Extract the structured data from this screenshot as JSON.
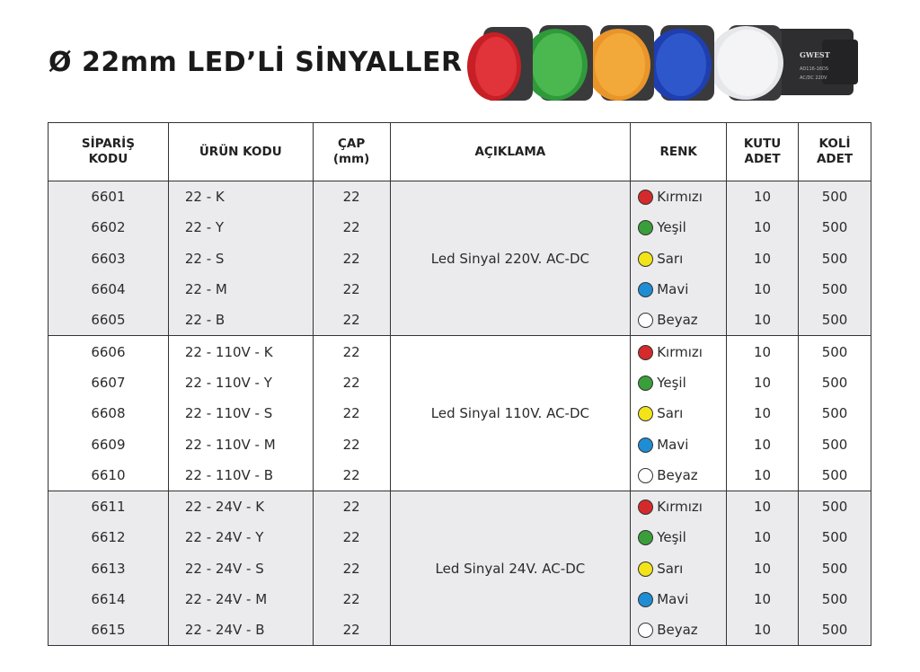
{
  "title": "Ø 22mm LED’Lİ SİNYALLER",
  "product_image": {
    "brand": "GWEST",
    "model": "AD116-16DS",
    "rating": "AC/DC 220V"
  },
  "colors": {
    "Kırmızı": "#d42a2c",
    "Yeşil": "#3a9e3a",
    "Sarı": "#f3e41a",
    "Mavi": "#1f8dd4",
    "Beyaz": "#ffffff"
  },
  "headers": {
    "siparis": "SİPARİŞ\nKODU",
    "urun": "ÜRÜN KODU",
    "cap": "ÇAP\n(mm)",
    "aciklama": "AÇIKLAMA",
    "renk": "RENK",
    "kutu": "KUTU\nADET",
    "koli": "KOLİ\nADET"
  },
  "groups": [
    {
      "description": "Led Sinyal 220V. AC-DC",
      "rows": [
        {
          "siparis": "6601",
          "urun": "22 - K",
          "cap": "22",
          "renk": "Kırmızı",
          "kutu": "10",
          "koli": "500"
        },
        {
          "siparis": "6602",
          "urun": "22 - Y",
          "cap": "22",
          "renk": "Yeşil",
          "kutu": "10",
          "koli": "500"
        },
        {
          "siparis": "6603",
          "urun": "22 - S",
          "cap": "22",
          "renk": "Sarı",
          "kutu": "10",
          "koli": "500"
        },
        {
          "siparis": "6604",
          "urun": "22 - M",
          "cap": "22",
          "renk": "Mavi",
          "kutu": "10",
          "koli": "500"
        },
        {
          "siparis": "6605",
          "urun": "22 - B",
          "cap": "22",
          "renk": "Beyaz",
          "kutu": "10",
          "koli": "500"
        }
      ]
    },
    {
      "description": "Led Sinyal 110V. AC-DC",
      "rows": [
        {
          "siparis": "6606",
          "urun": "22 - 110V - K",
          "cap": "22",
          "renk": "Kırmızı",
          "kutu": "10",
          "koli": "500"
        },
        {
          "siparis": "6607",
          "urun": "22 - 110V - Y",
          "cap": "22",
          "renk": "Yeşil",
          "kutu": "10",
          "koli": "500"
        },
        {
          "siparis": "6608",
          "urun": "22 - 110V - S",
          "cap": "22",
          "renk": "Sarı",
          "kutu": "10",
          "koli": "500"
        },
        {
          "siparis": "6609",
          "urun": "22 - 110V - M",
          "cap": "22",
          "renk": "Mavi",
          "kutu": "10",
          "koli": "500"
        },
        {
          "siparis": "6610",
          "urun": "22 - 110V - B",
          "cap": "22",
          "renk": "Beyaz",
          "kutu": "10",
          "koli": "500"
        }
      ]
    },
    {
      "description": "Led Sinyal 24V. AC-DC",
      "rows": [
        {
          "siparis": "6611",
          "urun": "22 - 24V - K",
          "cap": "22",
          "renk": "Kırmızı",
          "kutu": "10",
          "koli": "500"
        },
        {
          "siparis": "6612",
          "urun": "22 - 24V - Y",
          "cap": "22",
          "renk": "Yeşil",
          "kutu": "10",
          "koli": "500"
        },
        {
          "siparis": "6613",
          "urun": "22 - 24V - S",
          "cap": "22",
          "renk": "Sarı",
          "kutu": "10",
          "koli": "500"
        },
        {
          "siparis": "6614",
          "urun": "22 - 24V - M",
          "cap": "22",
          "renk": "Mavi",
          "kutu": "10",
          "koli": "500"
        },
        {
          "siparis": "6615",
          "urun": "22 - 24V - B",
          "cap": "22",
          "renk": "Beyaz",
          "kutu": "10",
          "koli": "500"
        }
      ]
    }
  ]
}
